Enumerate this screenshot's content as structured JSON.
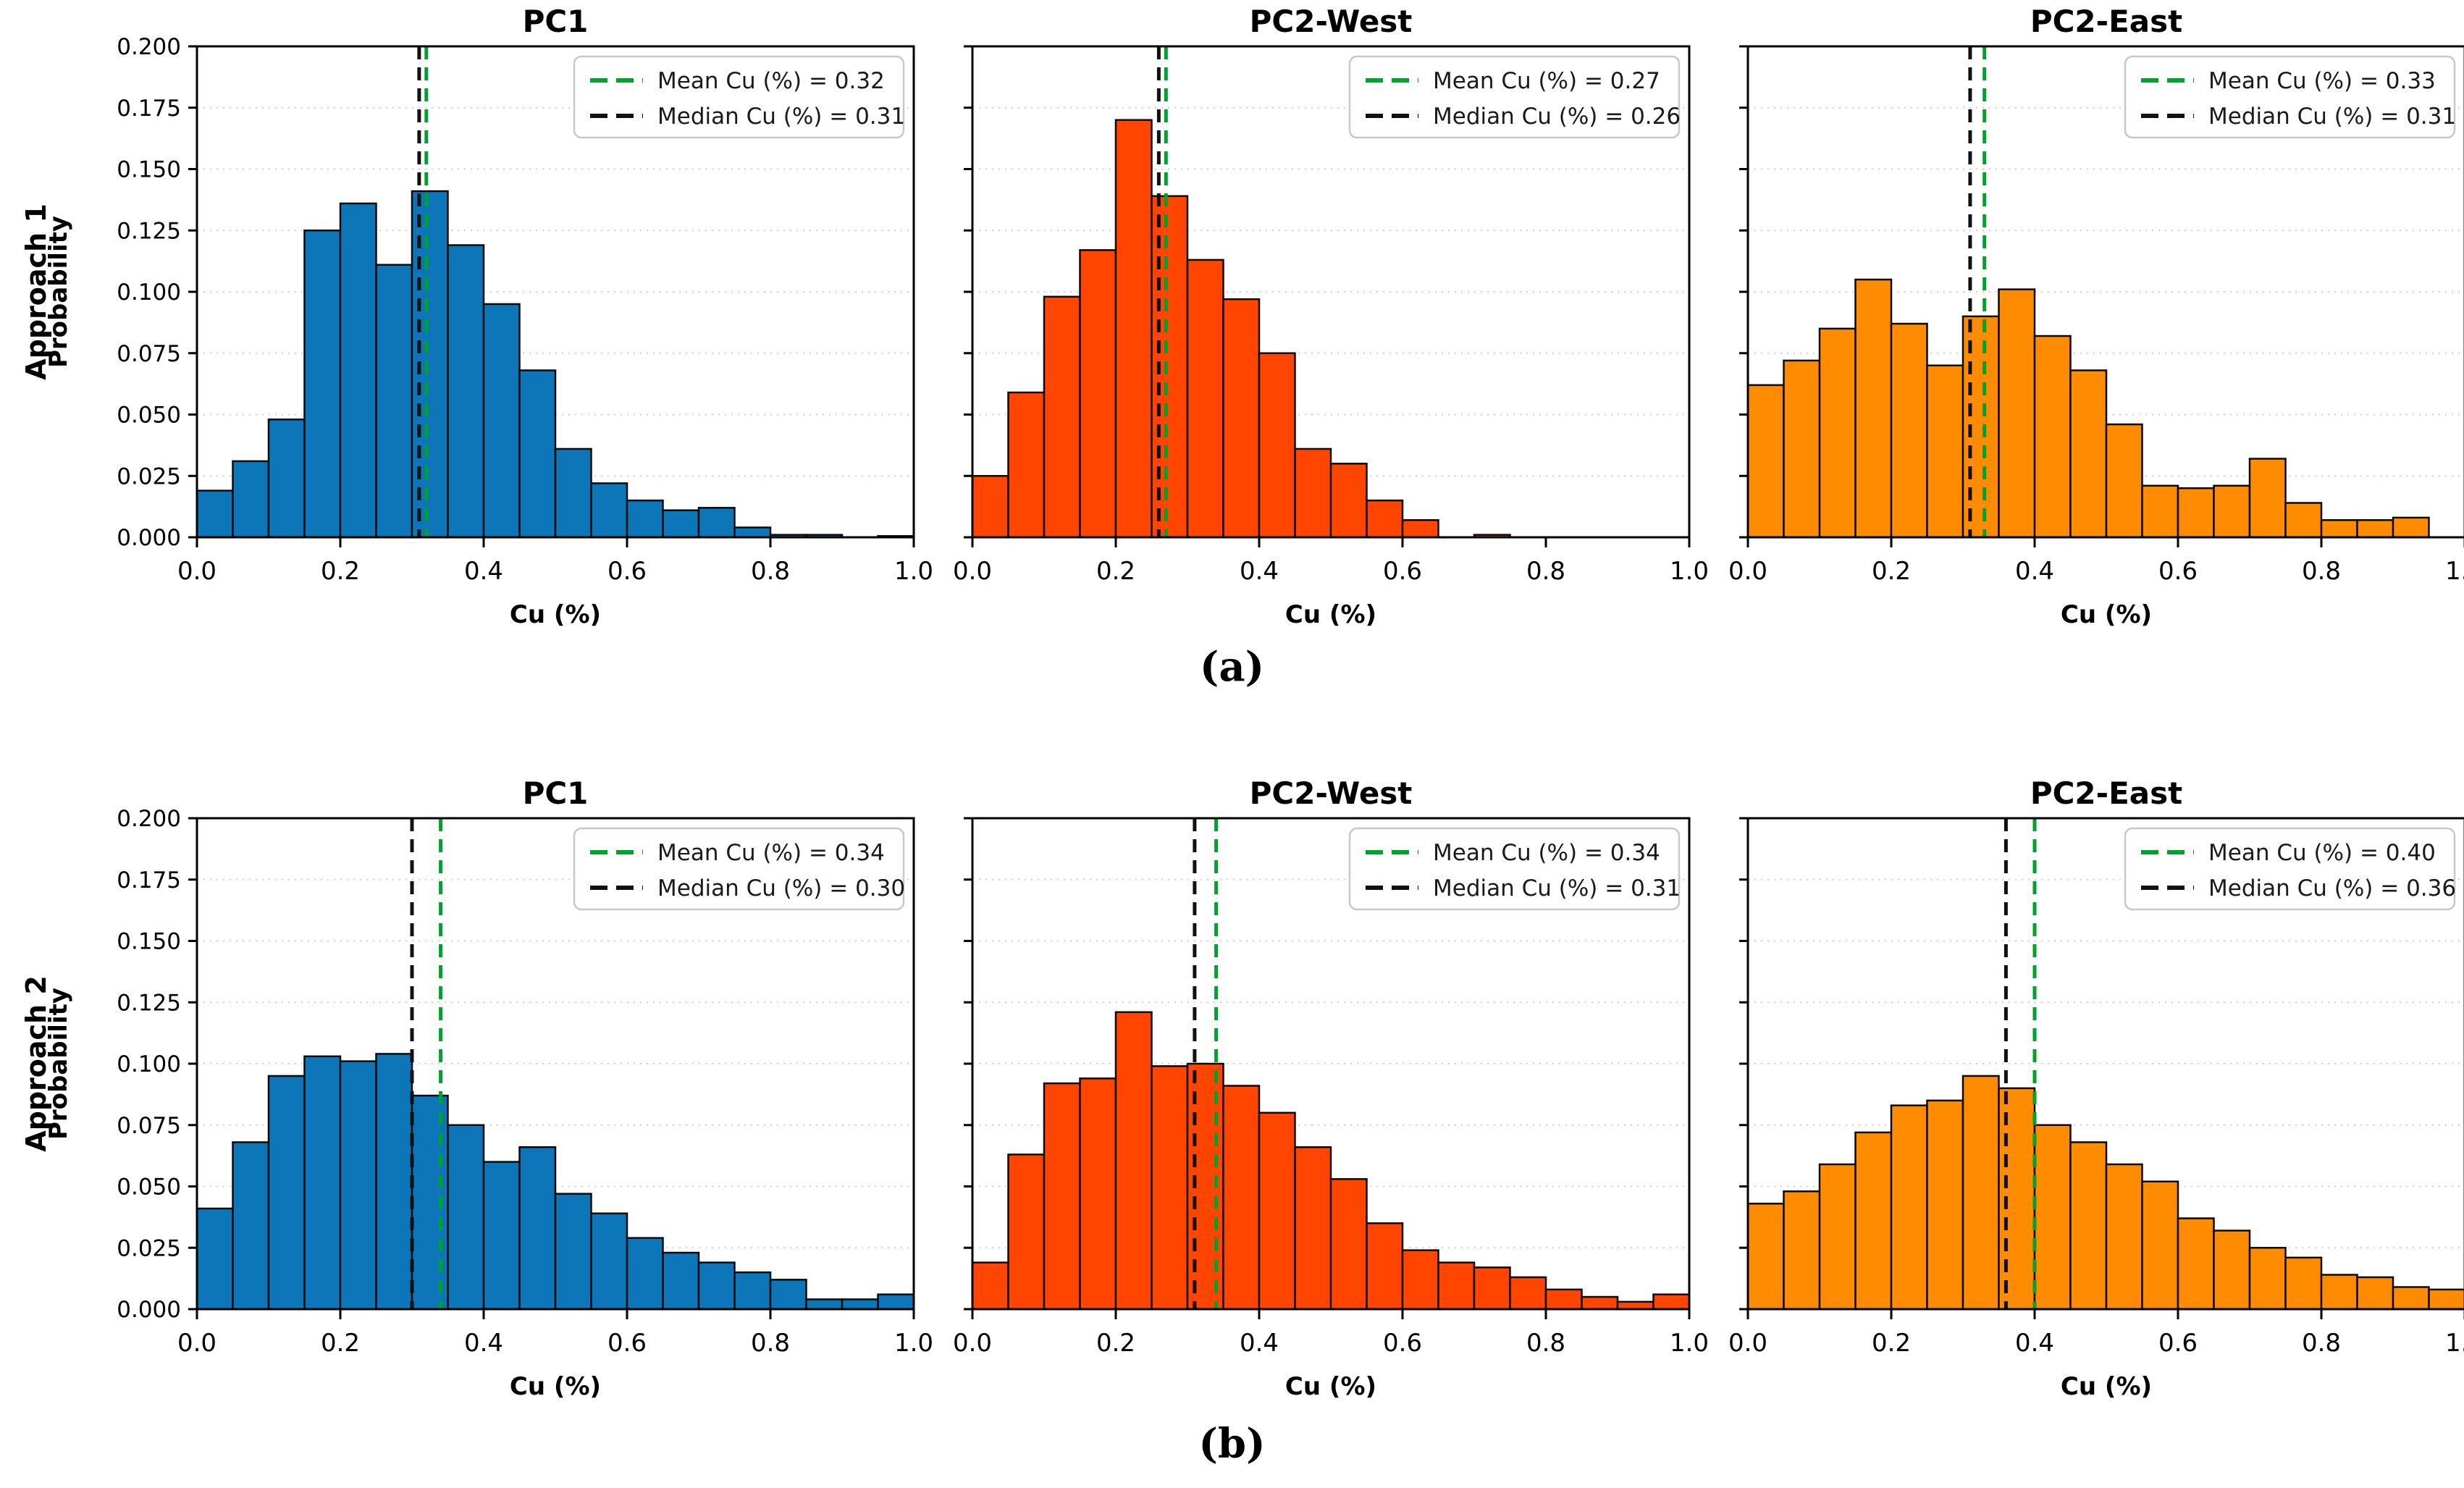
{
  "rows": [
    {
      "label": "Approach 1",
      "caption": "(a)"
    },
    {
      "label": "Approach 2",
      "caption": "(b)"
    }
  ],
  "axes": {
    "xlabel": "Cu (%)",
    "ylabel": "Probability",
    "x_ticks": [
      "0.0",
      "0.2",
      "0.4",
      "0.6",
      "0.8",
      "1.0"
    ],
    "y_ticks": [
      "0.000",
      "0.025",
      "0.050",
      "0.075",
      "0.100",
      "0.125",
      "0.150",
      "0.175",
      "0.200"
    ]
  },
  "colors": {
    "pc1": "#0c76b8",
    "pc2_west": "#ff4500",
    "pc2_east": "#ff8c00",
    "mean_line": "#00a22e",
    "median_line": "#111111",
    "grid": "#cfcfcf",
    "bar_edge": "#0a0a0a",
    "legend_border": "#c8c8c8",
    "text": "#000000"
  },
  "chart_data": [
    {
      "type": "histogram",
      "row": 0,
      "col": 0,
      "title": "PC1",
      "color": "#0c76b8",
      "xlabel": "Cu (%)",
      "ylabel": "Probability",
      "xlim": [
        0,
        1
      ],
      "ylim": [
        0,
        0.2
      ],
      "bins": {
        "start": 0.0,
        "width": 0.05,
        "count": 20
      },
      "values": [
        0.019,
        0.031,
        0.048,
        0.125,
        0.136,
        0.111,
        0.141,
        0.119,
        0.095,
        0.068,
        0.036,
        0.022,
        0.015,
        0.011,
        0.012,
        0.004,
        0.001,
        0.001,
        0.0,
        0.0005
      ],
      "mean": 0.32,
      "median": 0.31,
      "legend_mean": "Mean Cu (%) = 0.32",
      "legend_median": "Median Cu (%) = 0.31"
    },
    {
      "type": "histogram",
      "row": 0,
      "col": 1,
      "title": "PC2-West",
      "color": "#ff4500",
      "xlabel": "Cu (%)",
      "ylabel": "Probability",
      "xlim": [
        0,
        1
      ],
      "ylim": [
        0,
        0.2
      ],
      "bins": {
        "start": 0.0,
        "width": 0.05,
        "count": 20
      },
      "values": [
        0.025,
        0.059,
        0.098,
        0.117,
        0.17,
        0.139,
        0.113,
        0.097,
        0.075,
        0.036,
        0.03,
        0.015,
        0.007,
        0.0,
        0.001,
        0.0,
        0.0,
        0.0,
        0.0,
        0.0
      ],
      "mean": 0.27,
      "median": 0.26,
      "legend_mean": "Mean Cu (%) = 0.27",
      "legend_median": "Median Cu (%) = 0.26"
    },
    {
      "type": "histogram",
      "row": 0,
      "col": 2,
      "title": "PC2-East",
      "color": "#ff8c00",
      "xlabel": "Cu (%)",
      "ylabel": "Probability",
      "xlim": [
        0,
        1
      ],
      "ylim": [
        0,
        0.2
      ],
      "bins": {
        "start": 0.0,
        "width": 0.05,
        "count": 20
      },
      "values": [
        0.062,
        0.072,
        0.085,
        0.105,
        0.087,
        0.07,
        0.09,
        0.101,
        0.082,
        0.068,
        0.046,
        0.021,
        0.02,
        0.021,
        0.032,
        0.014,
        0.007,
        0.007,
        0.008,
        0.0
      ],
      "mean": 0.33,
      "median": 0.31,
      "legend_mean": "Mean Cu (%) = 0.33",
      "legend_median": "Median Cu (%) = 0.31"
    },
    {
      "type": "histogram",
      "row": 1,
      "col": 0,
      "title": "PC1",
      "color": "#0c76b8",
      "xlabel": "Cu (%)",
      "ylabel": "Probability",
      "xlim": [
        0,
        1
      ],
      "ylim": [
        0,
        0.2
      ],
      "bins": {
        "start": 0.0,
        "width": 0.05,
        "count": 20
      },
      "values": [
        0.041,
        0.068,
        0.095,
        0.103,
        0.101,
        0.104,
        0.087,
        0.075,
        0.06,
        0.066,
        0.047,
        0.039,
        0.029,
        0.023,
        0.019,
        0.015,
        0.012,
        0.004,
        0.004,
        0.006
      ],
      "mean": 0.34,
      "median": 0.3,
      "legend_mean": "Mean Cu (%) = 0.34",
      "legend_median": "Median Cu (%) = 0.30"
    },
    {
      "type": "histogram",
      "row": 1,
      "col": 1,
      "title": "PC2-West",
      "color": "#ff4500",
      "xlabel": "Cu (%)",
      "ylabel": "Probability",
      "xlim": [
        0,
        1
      ],
      "ylim": [
        0,
        0.2
      ],
      "bins": {
        "start": 0.0,
        "width": 0.05,
        "count": 20
      },
      "values": [
        0.019,
        0.063,
        0.092,
        0.094,
        0.121,
        0.099,
        0.1,
        0.091,
        0.08,
        0.066,
        0.053,
        0.035,
        0.024,
        0.019,
        0.017,
        0.013,
        0.008,
        0.005,
        0.003,
        0.006
      ],
      "mean": 0.34,
      "median": 0.31,
      "legend_mean": "Mean Cu (%) = 0.34",
      "legend_median": "Median Cu (%) = 0.31"
    },
    {
      "type": "histogram",
      "row": 1,
      "col": 2,
      "title": "PC2-East",
      "color": "#ff8c00",
      "xlabel": "Cu (%)",
      "ylabel": "Probability",
      "xlim": [
        0,
        1
      ],
      "ylim": [
        0,
        0.2
      ],
      "bins": {
        "start": 0.0,
        "width": 0.05,
        "count": 20
      },
      "values": [
        0.043,
        0.048,
        0.059,
        0.072,
        0.083,
        0.085,
        0.095,
        0.09,
        0.075,
        0.068,
        0.059,
        0.052,
        0.037,
        0.032,
        0.025,
        0.021,
        0.014,
        0.013,
        0.009,
        0.008
      ],
      "mean": 0.4,
      "median": 0.36,
      "legend_mean": "Mean Cu (%) = 0.40",
      "legend_median": "Median Cu (%) = 0.36"
    }
  ]
}
